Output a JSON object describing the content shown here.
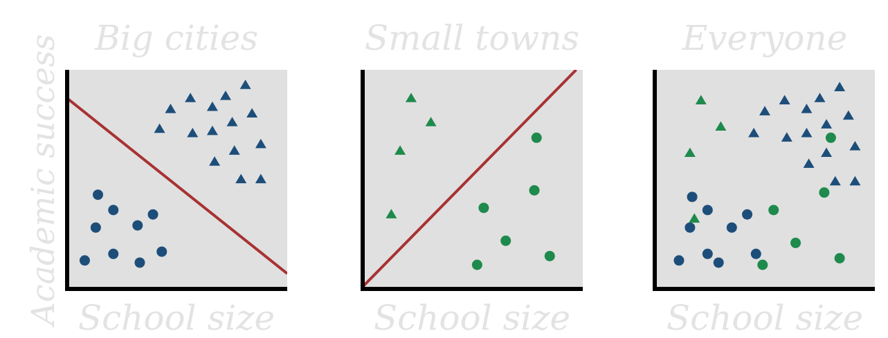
{
  "chart_data": [
    {
      "type": "scatter",
      "title": "Big cities",
      "xlabel": "School size",
      "ylabel": "Academic success",
      "xlim": [
        0,
        10
      ],
      "ylim": [
        0,
        10
      ],
      "grid": false,
      "colors": {
        "blue": "#1d4e7a",
        "green": "#1e8a4c",
        "line": "#a83232",
        "background": "#e0e0e0",
        "axis": "#000000"
      },
      "series": [
        {
          "color": "blue",
          "marker": "triangle",
          "points": [
            [
              4.2,
              7.3
            ],
            [
              4.7,
              8.2
            ],
            [
              5.6,
              8.7
            ],
            [
              5.7,
              7.1
            ],
            [
              6.6,
              8.3
            ],
            [
              7.2,
              8.8
            ],
            [
              8.1,
              9.3
            ],
            [
              6.6,
              7.2
            ],
            [
              7.5,
              7.6
            ],
            [
              8.4,
              8.0
            ],
            [
              6.7,
              5.8
            ],
            [
              7.6,
              6.3
            ],
            [
              8.8,
              6.6
            ],
            [
              7.9,
              5.0
            ],
            [
              8.8,
              5.0
            ]
          ]
        },
        {
          "color": "blue",
          "marker": "circle",
          "points": [
            [
              1.4,
              4.3
            ],
            [
              2.1,
              3.6
            ],
            [
              1.3,
              2.8
            ],
            [
              3.2,
              2.9
            ],
            [
              3.9,
              3.4
            ],
            [
              0.8,
              1.3
            ],
            [
              2.1,
              1.6
            ],
            [
              3.3,
              1.2
            ],
            [
              4.3,
              1.7
            ]
          ]
        }
      ],
      "fit_line": [
        [
          0,
          8.7
        ],
        [
          10,
          0.7
        ]
      ]
    },
    {
      "type": "scatter",
      "title": "Small towns",
      "xlabel": "School size",
      "xlim": [
        0,
        10
      ],
      "ylim": [
        0,
        10
      ],
      "grid": false,
      "series": [
        {
          "color": "green",
          "marker": "triangle",
          "points": [
            [
              2.2,
              8.7
            ],
            [
              3.1,
              7.6
            ],
            [
              1.7,
              6.3
            ],
            [
              1.3,
              3.4
            ]
          ]
        },
        {
          "color": "green",
          "marker": "circle",
          "points": [
            [
              7.9,
              6.9
            ],
            [
              7.8,
              4.5
            ],
            [
              5.5,
              3.7
            ],
            [
              6.5,
              2.2
            ],
            [
              5.2,
              1.1
            ],
            [
              8.5,
              1.5
            ]
          ]
        }
      ],
      "fit_line": [
        [
          0,
          0.1
        ],
        [
          9.7,
          10
        ]
      ]
    },
    {
      "type": "scatter",
      "title": "Everyone",
      "xlabel": "School size",
      "xlim": [
        0,
        10
      ],
      "ylim": [
        0,
        10
      ],
      "grid": false,
      "series": [
        {
          "color": "blue",
          "marker": "triangle",
          "points": [
            [
              4.5,
              7.1
            ],
            [
              5.0,
              8.1
            ],
            [
              5.9,
              8.6
            ],
            [
              6.0,
              6.9
            ],
            [
              6.9,
              8.2
            ],
            [
              7.5,
              8.7
            ],
            [
              8.4,
              9.2
            ],
            [
              6.9,
              7.1
            ],
            [
              7.8,
              7.5
            ],
            [
              8.8,
              7.9
            ],
            [
              7.0,
              5.7
            ],
            [
              7.8,
              6.2
            ],
            [
              9.1,
              6.5
            ],
            [
              8.2,
              4.9
            ],
            [
              9.1,
              4.9
            ]
          ]
        },
        {
          "color": "blue",
          "marker": "circle",
          "points": [
            [
              1.7,
              4.2
            ],
            [
              2.4,
              3.6
            ],
            [
              1.6,
              2.8
            ],
            [
              3.5,
              2.8
            ],
            [
              4.2,
              3.4
            ],
            [
              1.1,
              1.3
            ],
            [
              2.4,
              1.6
            ],
            [
              2.9,
              1.2
            ],
            [
              4.6,
              1.6
            ]
          ]
        },
        {
          "color": "green",
          "marker": "triangle",
          "points": [
            [
              2.1,
              8.6
            ],
            [
              3.0,
              7.4
            ],
            [
              1.6,
              6.2
            ],
            [
              1.8,
              3.2
            ]
          ]
        },
        {
          "color": "green",
          "marker": "circle",
          "points": [
            [
              8.0,
              6.9
            ],
            [
              7.7,
              4.4
            ],
            [
              5.4,
              3.6
            ],
            [
              6.4,
              2.1
            ],
            [
              4.9,
              1.1
            ],
            [
              8.4,
              1.4
            ]
          ]
        }
      ]
    }
  ]
}
